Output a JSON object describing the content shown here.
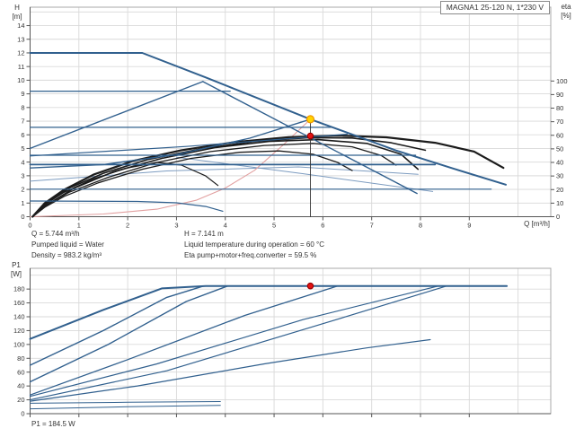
{
  "colors": {
    "grid": "#d9d9d9",
    "frame": "#aaaaaa",
    "axis": "#555555",
    "text": "#333333",
    "curve_blue": "#31608e",
    "curve_light_blue": "#7d9cc0",
    "curve_black": "#1b1b1b",
    "system_curve_pink": "#e2a0a0",
    "duty_marker_yellow": "#ffd400",
    "duty_marker_ring": "#f09600",
    "point_red": "#e51212"
  },
  "operating_point": {
    "q_m3h": 5.744,
    "h_m": 7.141,
    "eta_pct": 59.5,
    "p1_w": 184.5
  },
  "footer_top": {
    "left": [
      "Q = 5.744 m³/h",
      "Pumped liquid = Water",
      "Density = 983.2 kg/m³"
    ],
    "right": [
      "H = 7.141 m",
      "Liquid temperature during operation = 60 °C",
      "Eta pump+motor+freq.converter = 59.5 %"
    ]
  },
  "footer_bottom": "P1 = 184.5 W",
  "chart_data": [
    {
      "id": "qh-eta-chart",
      "type": "line",
      "title": "MAGNA1 25-120 N, 1*230 V",
      "xlabel": "Q [m³/h]",
      "ylabel": [
        "H",
        "[m]"
      ],
      "y2label": [
        "eta",
        "[%]"
      ],
      "xlim": [
        0,
        10.67
      ],
      "ylim": [
        0,
        15.35
      ],
      "y2lim": [
        0,
        154.4
      ],
      "x_ticks": [
        0,
        1,
        2,
        3,
        4,
        5,
        6,
        7,
        8,
        9
      ],
      "x_tick_labels": true,
      "y_ticks": [
        0,
        1,
        2,
        3,
        4,
        5,
        6,
        7,
        8,
        9,
        10,
        11,
        12,
        13,
        14
      ],
      "y2_ticks": [
        0,
        10,
        20,
        30,
        40,
        50,
        60,
        70,
        80,
        90,
        100
      ],
      "grid_x": [
        1,
        2,
        3,
        4,
        5,
        6,
        7,
        8,
        9,
        10
      ],
      "grid_y": [
        1,
        2,
        3,
        4,
        5,
        6,
        7,
        8,
        9,
        10,
        11,
        12,
        13,
        14,
        15
      ],
      "series": [
        {
          "name": "aux-curve-1",
          "color": "#7d9cc0",
          "width": 1,
          "points": [
            [
              0,
              2.6
            ],
            [
              2.8,
              3.35
            ],
            [
              5.5,
              3.65
            ],
            [
              7.95,
              3.1
            ]
          ]
        },
        {
          "name": "aux-curve-2",
          "color": "#7d9cc0",
          "width": 1,
          "points": [
            [
              3.0,
              4.35
            ],
            [
              5.6,
              3.15
            ],
            [
              8.25,
              1.85
            ]
          ]
        },
        {
          "name": "system-curve",
          "color": "#e2a0a0",
          "width": 1.1,
          "points": [
            [
              0,
              0
            ],
            [
              1.5,
              0.2
            ],
            [
              2.6,
              0.55
            ],
            [
              3.4,
              1.2
            ],
            [
              4.0,
              2.1
            ],
            [
              4.6,
              3.4
            ],
            [
              5.2,
              5.3
            ],
            [
              5.744,
              7.141
            ]
          ]
        },
        {
          "name": "eta-curve-1",
          "color": "#1b1b1b",
          "width": 2.2,
          "axis": "y2",
          "points": [
            [
              0.05,
              0
            ],
            [
              0.3,
              10
            ],
            [
              0.7,
              20
            ],
            [
              1.3,
              31
            ],
            [
              2.1,
              41
            ],
            [
              3.1,
              49
            ],
            [
              4.2,
              55
            ],
            [
              5.3,
              58.6
            ],
            [
              6.3,
              59.8
            ],
            [
              7.3,
              58.5
            ],
            [
              8.3,
              54.5
            ],
            [
              9.1,
              48
            ],
            [
              9.7,
              36
            ]
          ]
        },
        {
          "name": "eta-curve-2",
          "color": "#1b1b1b",
          "width": 1.6,
          "axis": "y2",
          "points": [
            [
              0.05,
              0
            ],
            [
              0.35,
              10
            ],
            [
              0.8,
              21
            ],
            [
              1.5,
              32
            ],
            [
              2.4,
              42
            ],
            [
              3.5,
              50
            ],
            [
              4.6,
              55.5
            ],
            [
              5.7,
              58.2
            ],
            [
              6.6,
              58
            ],
            [
              7.4,
              54.5
            ],
            [
              8.1,
              49
            ]
          ]
        },
        {
          "name": "eta-curve-3",
          "color": "#1b1b1b",
          "width": 1.6,
          "axis": "y2",
          "points": [
            [
              0.05,
              0
            ],
            [
              0.4,
              10
            ],
            [
              0.9,
              21
            ],
            [
              1.7,
              33
            ],
            [
              2.7,
              43
            ],
            [
              3.8,
              51
            ],
            [
              4.9,
              55.5
            ],
            [
              5.9,
              56.8
            ],
            [
              6.9,
              54
            ],
            [
              7.6,
              46
            ],
            [
              7.95,
              35
            ]
          ]
        },
        {
          "name": "eta-curve-4",
          "color": "#1b1b1b",
          "width": 1.3,
          "axis": "y2",
          "points": [
            [
              0.05,
              0
            ],
            [
              0.3,
              8
            ],
            [
              0.8,
              18
            ],
            [
              1.6,
              29
            ],
            [
              2.6,
              40
            ],
            [
              3.7,
              48
            ],
            [
              4.8,
              52.5
            ],
            [
              5.8,
              54
            ],
            [
              6.6,
              51.5
            ],
            [
              7.2,
              45
            ],
            [
              7.5,
              38
            ]
          ]
        },
        {
          "name": "eta-curve-5",
          "color": "#1b1b1b",
          "width": 1.3,
          "axis": "y2",
          "points": [
            [
              0.05,
              0
            ],
            [
              0.3,
              7
            ],
            [
              0.7,
              15
            ],
            [
              1.4,
              25
            ],
            [
              2.3,
              35
            ],
            [
              3.3,
              43
            ],
            [
              4.3,
              47.5
            ],
            [
              5.1,
              48.5
            ],
            [
              5.8,
              46
            ],
            [
              6.3,
              40
            ],
            [
              6.6,
              34
            ]
          ]
        },
        {
          "name": "eta-curve-6",
          "color": "#1b1b1b",
          "width": 1.2,
          "axis": "y2",
          "points": [
            [
              0.05,
              0
            ],
            [
              0.3,
              9
            ],
            [
              0.7,
              18
            ],
            [
              1.3,
              28
            ],
            [
              2.0,
              36
            ],
            [
              2.6,
              40
            ],
            [
              3.1,
              38
            ],
            [
              3.6,
              30
            ],
            [
              3.85,
              23
            ]
          ]
        },
        {
          "name": "const-pressure-9.2",
          "color": "#31608e",
          "width": 1.2,
          "points": [
            [
              0,
              9.2
            ],
            [
              4.1,
              9.2
            ]
          ]
        },
        {
          "name": "const-pressure-6.5",
          "color": "#31608e",
          "width": 1.2,
          "points": [
            [
              0,
              6.55
            ],
            [
              6.2,
              6.55
            ]
          ]
        },
        {
          "name": "const-pressure-4.5",
          "color": "#31608e",
          "width": 1.2,
          "points": [
            [
              0,
              4.5
            ],
            [
              7.9,
              4.5
            ]
          ]
        },
        {
          "name": "const-pressure-3.8",
          "color": "#31608e",
          "width": 1.8,
          "points": [
            [
              0,
              3.82
            ],
            [
              8.3,
              3.82
            ]
          ]
        },
        {
          "name": "const-pressure-2.0",
          "color": "#31608e",
          "width": 1.2,
          "points": [
            [
              0,
              2.02
            ],
            [
              9.45,
              2.02
            ]
          ]
        },
        {
          "name": "min-speed-curve",
          "color": "#31608e",
          "width": 1.2,
          "points": [
            [
              0,
              1.15
            ],
            [
              2.2,
              1.12
            ],
            [
              3.0,
              1.02
            ],
            [
              3.6,
              0.75
            ],
            [
              3.95,
              0.4
            ]
          ]
        },
        {
          "name": "prop-pressure-max-rise",
          "color": "#31608e",
          "width": 1.4,
          "points": [
            [
              0,
              5.0
            ],
            [
              3.54,
              9.9
            ]
          ]
        },
        {
          "name": "secondary-max-curve",
          "color": "#31608e",
          "width": 1.4,
          "points": [
            [
              3.54,
              9.9
            ],
            [
              7.93,
              1.7
            ]
          ]
        },
        {
          "name": "setpoint-prop-curve",
          "color": "#31608e",
          "width": 1.4,
          "points": [
            [
              0,
              3.57
            ],
            [
              1.5,
              3.82
            ],
            [
              3.0,
              4.55
            ],
            [
              4.5,
              5.75
            ],
            [
              5.744,
              7.141
            ]
          ]
        },
        {
          "name": "rise-gentle-curve",
          "color": "#31608e",
          "width": 1.2,
          "points": [
            [
              0,
              4.45
            ],
            [
              3.2,
              5.15
            ],
            [
              6.5,
              6.05
            ]
          ]
        },
        {
          "name": "max-speed-curve",
          "color": "#31608e",
          "width": 2,
          "points": [
            [
              0,
              12
            ],
            [
              2.3,
              12
            ],
            [
              3.6,
              10.2
            ],
            [
              5.744,
              7.141
            ],
            [
              7.5,
              4.85
            ],
            [
              8.7,
              3.5
            ],
            [
              9.75,
              2.35
            ]
          ]
        },
        {
          "name": "duty-flow-line",
          "color": "#333333",
          "width": 0.9,
          "points": [
            [
              5.744,
              0
            ],
            [
              5.744,
              7.141
            ]
          ]
        }
      ],
      "markers": [
        {
          "name": "duty-point",
          "x": 5.744,
          "y": 7.141,
          "r": 4,
          "fill": "#ffd400",
          "stroke": "#f09600"
        },
        {
          "name": "eta-point",
          "x": 5.744,
          "y": 59.5,
          "axis": "y2",
          "r": 3.2,
          "fill": "#e51212",
          "stroke": "#9b0000"
        }
      ]
    },
    {
      "id": "p1-power-chart",
      "type": "line",
      "title": "",
      "xlabel": "",
      "ylabel": [
        "P1",
        "[W]"
      ],
      "xlim": [
        0,
        10.67
      ],
      "ylim": [
        0,
        210
      ],
      "x_ticks": [
        0,
        1,
        2,
        3,
        4,
        5,
        6,
        7,
        8,
        9
      ],
      "x_tick_labels": false,
      "y_ticks": [
        0,
        20,
        40,
        60,
        80,
        100,
        120,
        140,
        160,
        180
      ],
      "grid_x": [
        1,
        2,
        3,
        4,
        5,
        6,
        7,
        8,
        9,
        10
      ],
      "grid_y": [
        20,
        40,
        60,
        80,
        100,
        120,
        140,
        160,
        180,
        200
      ],
      "series": [
        {
          "name": "p1-max-curve",
          "color": "#31608e",
          "width": 2,
          "points": [
            [
              0,
              108
            ],
            [
              1.5,
              150
            ],
            [
              2.7,
              181
            ],
            [
              3.6,
              184.5
            ],
            [
              9.77,
              184.5
            ]
          ]
        },
        {
          "name": "p1-curve-2",
          "color": "#31608e",
          "width": 1.4,
          "points": [
            [
              0,
              70
            ],
            [
              1.5,
              120
            ],
            [
              2.8,
              168
            ],
            [
              3.56,
              184.5
            ]
          ]
        },
        {
          "name": "p1-curve-3",
          "color": "#31608e",
          "width": 1.4,
          "points": [
            [
              0,
              46
            ],
            [
              1.6,
              100
            ],
            [
              3.2,
              162
            ],
            [
              4.05,
              184.5
            ]
          ]
        },
        {
          "name": "p1-curve-4",
          "color": "#31608e",
          "width": 1.3,
          "points": [
            [
              0,
              27
            ],
            [
              2.0,
              78
            ],
            [
              4.4,
              142
            ],
            [
              6.3,
              184.5
            ]
          ]
        },
        {
          "name": "p1-curve-5",
          "color": "#31608e",
          "width": 1.2,
          "points": [
            [
              0,
              25
            ],
            [
              2.6,
              72
            ],
            [
              5.6,
              136
            ],
            [
              8.37,
              184.5
            ]
          ]
        },
        {
          "name": "p1-curve-6",
          "color": "#31608e",
          "width": 1.2,
          "points": [
            [
              0,
              20
            ],
            [
              2.8,
              62
            ],
            [
              6.0,
              130
            ],
            [
              8.54,
              184.5
            ]
          ]
        },
        {
          "name": "p1-curve-7",
          "color": "#31608e",
          "width": 1.2,
          "points": [
            [
              0,
              18
            ],
            [
              2.2,
              40
            ],
            [
              4.8,
              72
            ],
            [
              6.9,
              95
            ],
            [
              8.2,
              107
            ]
          ]
        },
        {
          "name": "p1-min-curve",
          "color": "#31608e",
          "width": 1,
          "points": [
            [
              0,
              15
            ],
            [
              2.0,
              16.5
            ],
            [
              3.9,
              17.5
            ]
          ]
        },
        {
          "name": "p1-low-curve",
          "color": "#31608e",
          "width": 1,
          "points": [
            [
              0,
              7
            ],
            [
              2.0,
              10
            ],
            [
              3.9,
              12
            ]
          ]
        }
      ],
      "markers": [
        {
          "name": "power-point",
          "x": 5.744,
          "y": 184.5,
          "r": 3.2,
          "fill": "#e51212",
          "stroke": "#9b0000"
        }
      ]
    }
  ]
}
